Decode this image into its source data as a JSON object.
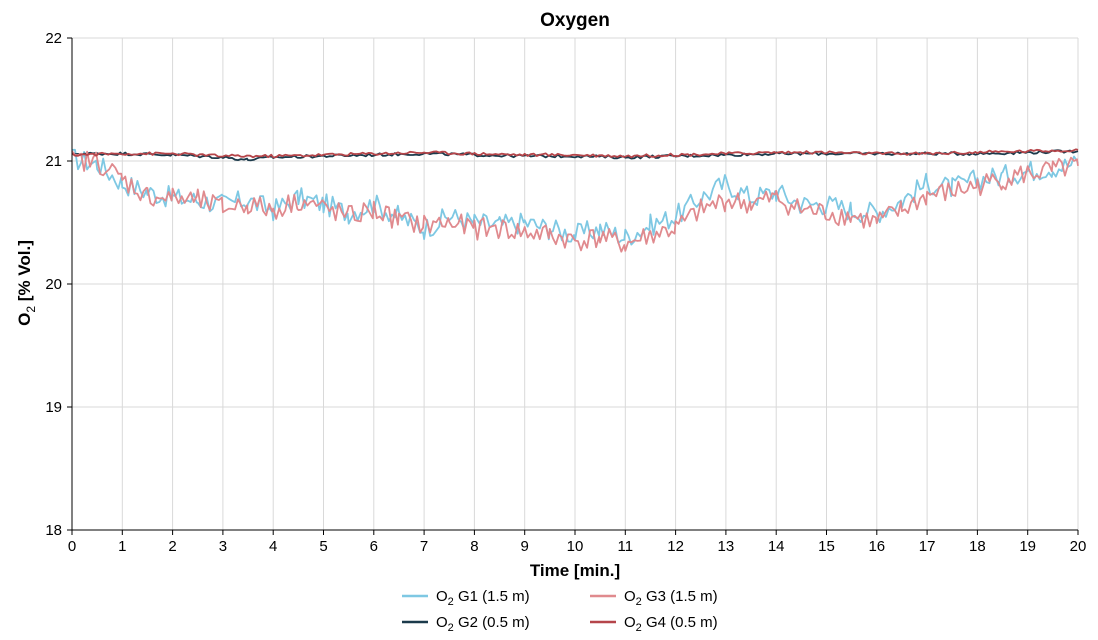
{
  "chart_data": {
    "type": "line",
    "title": "Oxygen",
    "xlabel": "Time [min.]",
    "ylabel": {
      "prefix": "O",
      "sub": "2",
      "suffix": " [% Vol.]"
    },
    "xlim": [
      0,
      20
    ],
    "ylim": [
      18,
      22
    ],
    "xticks": [
      0,
      1,
      2,
      3,
      4,
      5,
      6,
      7,
      8,
      9,
      10,
      11,
      12,
      13,
      14,
      15,
      16,
      17,
      18,
      19,
      20
    ],
    "yticks": [
      18,
      19,
      20,
      21,
      22
    ],
    "grid": true,
    "legend_position": "bottom",
    "series": [
      {
        "name": {
          "prefix": "O",
          "sub": "2",
          "suffix": " G1 (1.5 m)"
        },
        "color": "#7ec8e3",
        "x": [
          0,
          0.5,
          1,
          1.5,
          2,
          2.5,
          3,
          3.5,
          4,
          4.5,
          5,
          5.5,
          6,
          6.5,
          7,
          7.5,
          8,
          8.5,
          9,
          9.5,
          10,
          10.5,
          11,
          11.5,
          12,
          12.5,
          13,
          13.5,
          14,
          14.5,
          15,
          15.5,
          16,
          16.5,
          17,
          17.5,
          18,
          18.5,
          19,
          19.5,
          20
        ],
        "y": [
          21.02,
          20.98,
          20.82,
          20.75,
          20.7,
          20.68,
          20.65,
          20.68,
          20.6,
          20.7,
          20.65,
          20.58,
          20.65,
          20.55,
          20.45,
          20.55,
          20.5,
          20.48,
          20.5,
          20.45,
          20.4,
          20.45,
          20.38,
          20.48,
          20.55,
          20.7,
          20.82,
          20.7,
          20.75,
          20.65,
          20.65,
          20.6,
          20.58,
          20.68,
          20.82,
          20.78,
          20.85,
          20.88,
          20.92,
          20.95,
          20.98
        ]
      },
      {
        "name": {
          "prefix": "O",
          "sub": "2",
          "suffix": " G2 (0.5 m)"
        },
        "color": "#1b3a4b",
        "x": [
          0,
          1,
          2,
          3,
          3.5,
          4,
          5,
          6,
          7,
          8,
          9,
          10,
          11,
          12,
          13,
          14,
          15,
          16,
          17,
          18,
          19,
          20
        ],
        "y": [
          21.06,
          21.06,
          21.05,
          21.03,
          21.01,
          21.03,
          21.04,
          21.05,
          21.06,
          21.05,
          21.04,
          21.04,
          21.03,
          21.04,
          21.05,
          21.06,
          21.06,
          21.06,
          21.06,
          21.06,
          21.07,
          21.08
        ]
      },
      {
        "name": {
          "prefix": "O",
          "sub": "2",
          "suffix": " G3 (1.5 m)"
        },
        "color": "#e08a8e",
        "x": [
          0,
          0.5,
          1,
          1.5,
          2,
          2.5,
          3,
          3.5,
          4,
          4.5,
          5,
          5.5,
          6,
          6.5,
          7,
          7.5,
          8,
          8.5,
          9,
          9.5,
          10,
          10.5,
          11,
          11.5,
          12,
          12.5,
          13,
          13.5,
          14,
          14.5,
          15,
          15.5,
          16,
          16.5,
          17,
          17.5,
          18,
          18.5,
          19,
          19.5,
          20
        ],
        "y": [
          21.0,
          21.0,
          20.85,
          20.72,
          20.7,
          20.68,
          20.62,
          20.65,
          20.6,
          20.68,
          20.62,
          20.55,
          20.6,
          20.52,
          20.48,
          20.5,
          20.45,
          20.45,
          20.42,
          20.4,
          20.35,
          20.38,
          20.32,
          20.4,
          20.45,
          20.6,
          20.68,
          20.65,
          20.7,
          20.6,
          20.58,
          20.55,
          20.5,
          20.6,
          20.72,
          20.75,
          20.8,
          20.85,
          20.9,
          20.92,
          20.96
        ]
      },
      {
        "name": {
          "prefix": "O",
          "sub": "2",
          "suffix": " G4 (0.5 m)"
        },
        "color": "#b5454a",
        "x": [
          0,
          1,
          2,
          3,
          4,
          5,
          6,
          7,
          8,
          9,
          10,
          11,
          12,
          13,
          14,
          15,
          16,
          17,
          18,
          19,
          20
        ],
        "y": [
          21.05,
          21.06,
          21.06,
          21.04,
          21.04,
          21.05,
          21.06,
          21.07,
          21.06,
          21.05,
          21.05,
          21.04,
          21.05,
          21.06,
          21.07,
          21.07,
          21.06,
          21.06,
          21.07,
          21.08,
          21.09
        ]
      }
    ]
  }
}
